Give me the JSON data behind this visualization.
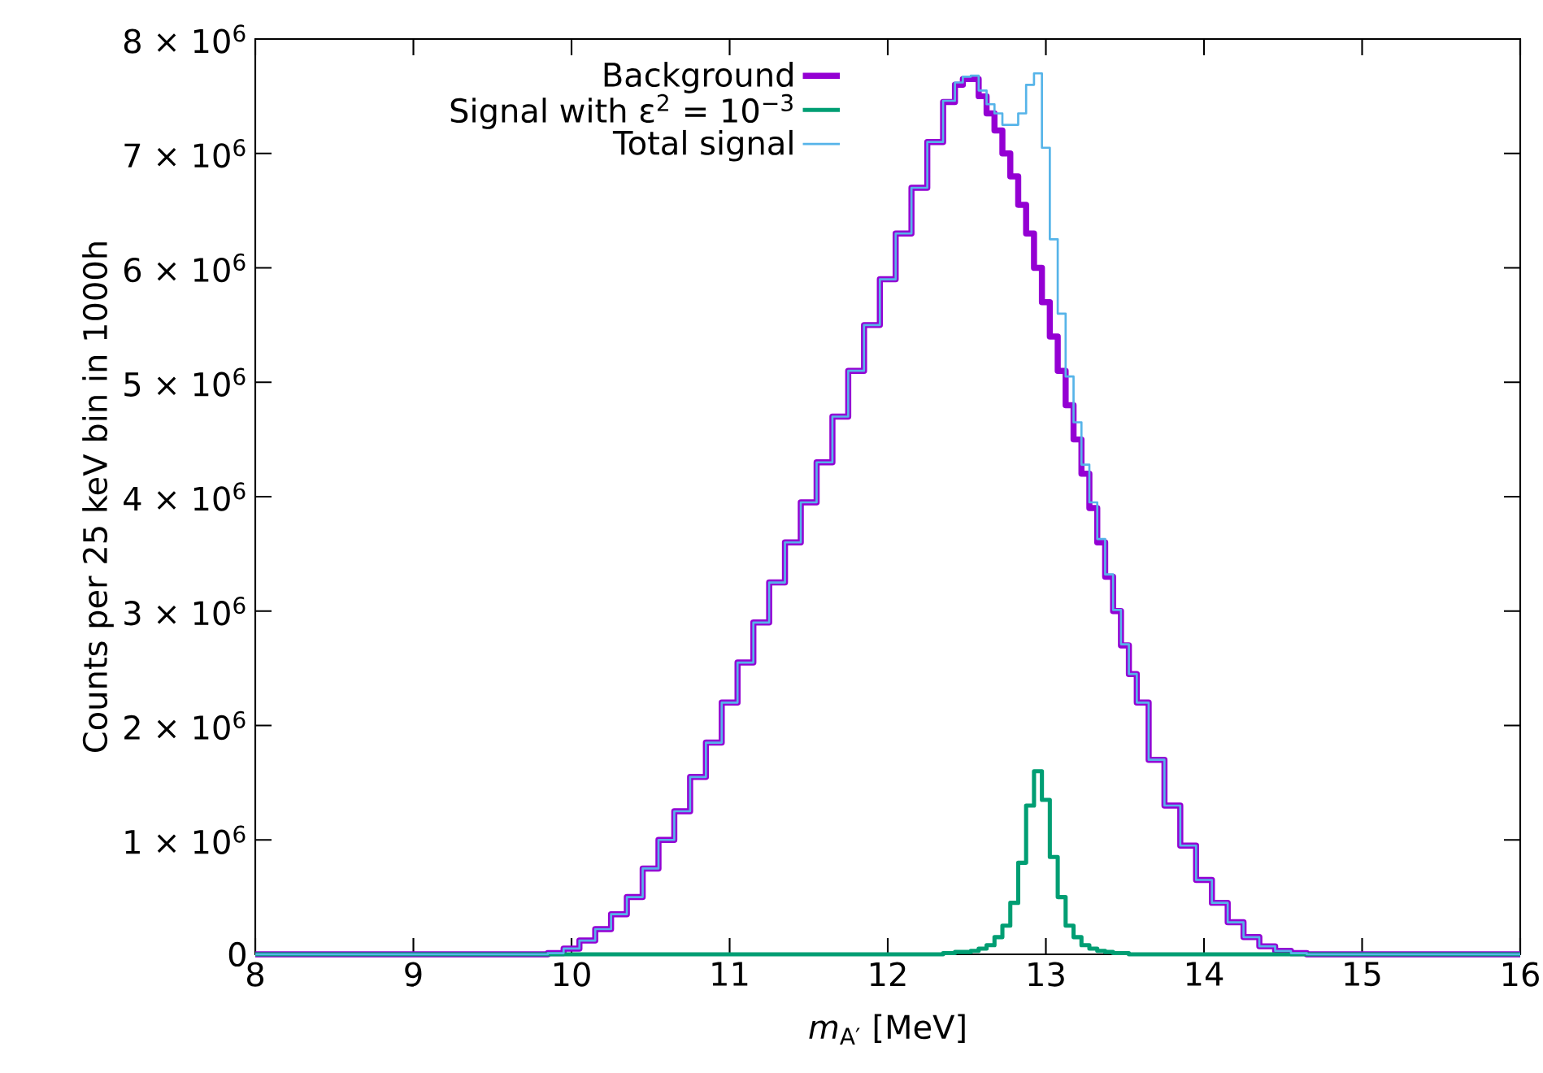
{
  "chart_data": {
    "type": "step",
    "xlabel": "*m*$_{A′}$ [MeV]",
    "ylabel": "Counts per 25 keV bin in 1000h",
    "legend": "top left",
    "x": [
      8,
      9,
      9.5,
      9.8,
      9.9,
      10.0,
      10.1,
      10.2,
      10.3,
      10.4,
      10.5,
      10.6,
      10.7,
      10.8,
      10.9,
      11.0,
      11.1,
      11.2,
      11.3,
      11.4,
      11.5,
      11.6,
      11.7,
      11.8,
      11.9,
      12.0,
      12.1,
      12.2,
      12.3,
      12.4,
      12.45,
      12.5,
      12.55,
      12.6,
      12.65,
      12.7,
      12.75,
      12.8,
      12.85,
      12.9,
      12.95,
      13.0,
      13.05,
      13.1,
      13.15,
      13.2,
      13.25,
      13.3,
      13.35,
      13.4,
      13.45,
      13.5,
      13.55,
      13.6,
      13.7,
      13.8,
      13.9,
      14.0,
      14.1,
      14.2,
      14.3,
      14.4,
      14.5,
      14.6,
      14.7,
      15,
      16
    ],
    "series": [
      {
        "name": "Background",
        "color": "#9400d3",
        "values": [
          0,
          0,
          0,
          0,
          10000.0,
          50000.0,
          120000.0,
          220000.0,
          350000.0,
          500000.0,
          750000.0,
          1000000.0,
          1250000.0,
          1550000.0,
          1850000.0,
          2200000.0,
          2550000.0,
          2900000.0,
          3250000.0,
          3600000.0,
          3950000.0,
          4300000.0,
          4700000.0,
          5100000.0,
          5500000.0,
          5900000.0,
          6300000.0,
          6700000.0,
          7100000.0,
          7450000.0,
          7600000.0,
          7650000.0,
          7650000.0,
          7500000.0,
          7350000.0,
          7200000.0,
          7000000.0,
          6800000.0,
          6550000.0,
          6300000.0,
          6000000.0,
          5700000.0,
          5400000.0,
          5100000.0,
          4800000.0,
          4500000.0,
          4200000.0,
          3900000.0,
          3600000.0,
          3300000.0,
          3000000.0,
          2700000.0,
          2450000.0,
          2200000.0,
          1700000.0,
          1300000.0,
          950000.0,
          650000.0,
          450000.0,
          280000.0,
          150000.0,
          70000.0,
          30000.0,
          10000.0,
          0,
          0,
          0
        ]
      },
      {
        "name": "Signal with ε$^{2}$ = 10$^{−3}$",
        "color": "#009e73",
        "values": [
          0,
          0,
          0,
          0,
          0,
          0,
          0,
          0,
          0,
          0,
          0,
          0,
          0,
          0,
          0,
          0,
          0,
          0,
          0,
          0,
          0,
          0,
          0,
          0,
          0,
          0,
          0,
          0,
          0,
          10000.0,
          20000.0,
          20000.0,
          30000.0,
          50000.0,
          80000.0,
          150000.0,
          250000.0,
          450000.0,
          800000.0,
          1300000.0,
          1600000.0,
          1350000.0,
          850000.0,
          500000.0,
          250000.0,
          150000.0,
          80000.0,
          50000.0,
          30000.0,
          20000.0,
          10000.0,
          10000.0,
          0,
          0,
          0,
          0,
          0,
          0,
          0,
          0,
          0,
          0,
          0,
          0,
          0,
          0,
          0
        ]
      },
      {
        "name": "Total signal",
        "color": "#56b4e9",
        "values": [
          0,
          0,
          0,
          0,
          10000.0,
          50000.0,
          120000.0,
          220000.0,
          350000.0,
          500000.0,
          750000.0,
          1000000.0,
          1250000.0,
          1550000.0,
          1850000.0,
          2200000.0,
          2550000.0,
          2900000.0,
          3250000.0,
          3600000.0,
          3950000.0,
          4300000.0,
          4700000.0,
          5100000.0,
          5500000.0,
          5900000.0,
          6300000.0,
          6700000.0,
          7100000.0,
          7460000.0,
          7620000.0,
          7670000.0,
          7680000.0,
          7550000.0,
          7430000.0,
          7350000.0,
          7250000.0,
          7250000.0,
          7350000.0,
          7600000.0,
          7700000.0,
          7050000.0,
          6250000.0,
          5600000.0,
          5050000.0,
          4650000.0,
          4280000.0,
          3950000.0,
          3630000.0,
          3320000.0,
          3010000.0,
          2710000.0,
          2450000.0,
          2200000.0,
          1700000.0,
          1300000.0,
          950000.0,
          650000.0,
          450000.0,
          280000.0,
          150000.0,
          70000.0,
          30000.0,
          10000.0,
          0,
          0,
          0
        ]
      }
    ],
    "xlim": [
      8,
      16
    ],
    "xticks": [
      8,
      9,
      10,
      11,
      12,
      13,
      14,
      15,
      16
    ],
    "ylim": [
      0,
      8000000
    ],
    "yticks": [
      0,
      {
        "value": 1000000,
        "label": "1 × 10$^{6}$"
      },
      {
        "value": 2000000,
        "label": "2 × 10$^{6}$"
      },
      {
        "value": 3000000,
        "label": "3 × 10$^{6}$"
      },
      {
        "value": 4000000,
        "label": "4 × 10$^{6}$"
      },
      {
        "value": 5000000,
        "label": "5 × 10$^{6}$"
      },
      {
        "value": 6000000,
        "label": "6 × 10$^{6}$"
      },
      {
        "value": 7000000,
        "label": "7 × 10$^{6}$"
      },
      {
        "value": 8000000,
        "label": "8 × 10$^{6}$"
      }
    ]
  }
}
